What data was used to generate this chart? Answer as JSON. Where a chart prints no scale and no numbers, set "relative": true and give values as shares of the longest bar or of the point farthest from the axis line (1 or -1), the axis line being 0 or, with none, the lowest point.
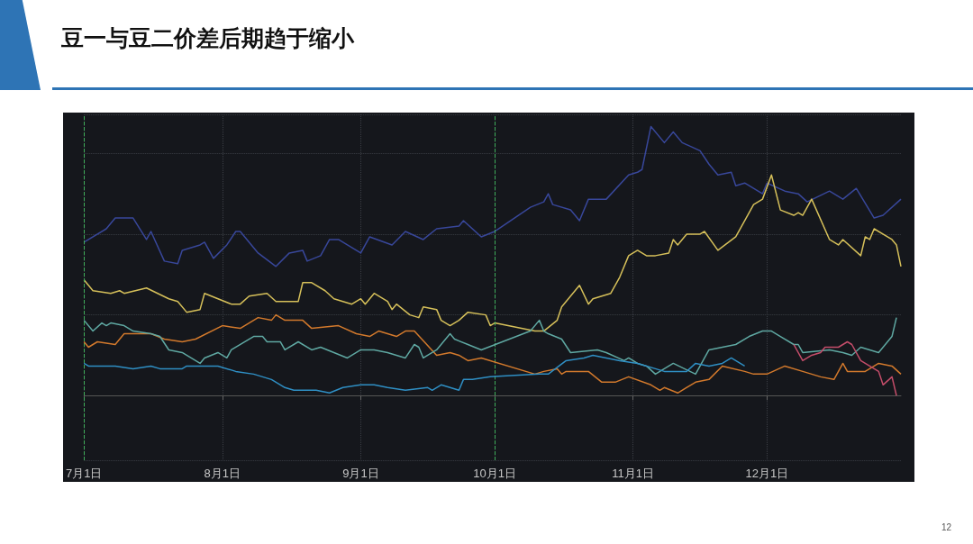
{
  "chart_data": {
    "type": "line",
    "title": "豆一与豆二价差后期趋于缩小",
    "relative": true,
    "grid": true,
    "marker": "none",
    "line_style": "solid",
    "xlim": [
      "--07-01",
      "--12-31"
    ],
    "xticks": [
      {
        "value": "--07-01",
        "label": "7月1日"
      },
      {
        "value": "--08-01",
        "label": "8月1日"
      },
      {
        "value": "--09-01",
        "label": "9月1日"
      },
      {
        "value": "--10-01",
        "label": "10月1日"
      },
      {
        "value": "--11-01",
        "label": "11月1日"
      },
      {
        "value": "--12-01",
        "label": "12月1日"
      }
    ],
    "ref_lines": [
      {
        "axis": "x",
        "value": "--07-01",
        "color": "#3fae5a",
        "line_style": "dashed"
      },
      {
        "axis": "x",
        "value": "--10-01",
        "color": "#3fae5a",
        "line_style": "dashed"
      }
    ],
    "annotations": [
      "12"
    ],
    "series": [
      {
        "color": "#38479a",
        "x": [
          "--07-01",
          "--07-06",
          "--07-08",
          "--07-12",
          "--07-15",
          "--07-16",
          "--07-19",
          "--07-22",
          "--07-23",
          "--07-27",
          "--07-28",
          "--07-30",
          "--08-02",
          "--08-04",
          "--08-05",
          "--08-09",
          "--08-13",
          "--08-16",
          "--08-19",
          "--08-20",
          "--08-23",
          "--08-25",
          "--08-27",
          "--09-01",
          "--09-03",
          "--09-08",
          "--09-11",
          "--09-15",
          "--09-18",
          "--09-23",
          "--09-24",
          "--09-28",
          "--10-01",
          "--10-09",
          "--10-12",
          "--10-13",
          "--10-14",
          "--10-18",
          "--10-20",
          "--10-22",
          "--10-26",
          "--10-31",
          "--11-02",
          "--11-03",
          "--11-05",
          "--11-08",
          "--11-10",
          "--11-12",
          "--11-16",
          "--11-18",
          "--11-20",
          "--11-23",
          "--11-24",
          "--11-26",
          "--11-30",
          "--12-01",
          "--12-05",
          "--12-08",
          "--12-10",
          "--12-15",
          "--12-18",
          "--12-21",
          "--12-25",
          "--12-27",
          "--12-31"
        ],
        "values": [
          0.57,
          0.62,
          0.66,
          0.66,
          0.58,
          0.61,
          0.5,
          0.49,
          0.54,
          0.56,
          0.57,
          0.51,
          0.56,
          0.61,
          0.61,
          0.53,
          0.48,
          0.53,
          0.54,
          0.5,
          0.52,
          0.58,
          0.58,
          0.53,
          0.59,
          0.56,
          0.61,
          0.58,
          0.62,
          0.63,
          0.65,
          0.59,
          0.61,
          0.7,
          0.72,
          0.75,
          0.71,
          0.69,
          0.65,
          0.73,
          0.73,
          0.82,
          0.83,
          0.84,
          1.0,
          0.94,
          0.98,
          0.94,
          0.91,
          0.86,
          0.82,
          0.83,
          0.78,
          0.79,
          0.75,
          0.79,
          0.76,
          0.75,
          0.72,
          0.76,
          0.73,
          0.77,
          0.66,
          0.67,
          0.73
        ]
      },
      {
        "color": "#d6c05a",
        "x": [
          "--07-01",
          "--07-03",
          "--07-07",
          "--07-09",
          "--07-10",
          "--07-15",
          "--07-20",
          "--07-22",
          "--07-24",
          "--07-27",
          "--07-28",
          "--08-03",
          "--08-05",
          "--08-07",
          "--08-11",
          "--08-13",
          "--08-18",
          "--08-19",
          "--08-21",
          "--08-24",
          "--08-26",
          "--08-30",
          "--09-01",
          "--09-02",
          "--09-04",
          "--09-07",
          "--09-08",
          "--09-09",
          "--09-12",
          "--09-14",
          "--09-15",
          "--09-18",
          "--09-19",
          "--09-21",
          "--09-23",
          "--09-25",
          "--09-29",
          "--09-30",
          "--10-01",
          "--10-10",
          "--10-12",
          "--10-15",
          "--10-16",
          "--10-20",
          "--10-22",
          "--10-23",
          "--10-27",
          "--10-29",
          "--10-31",
          "--11-02",
          "--11-04",
          "--11-06",
          "--11-09",
          "--11-10",
          "--11-11",
          "--11-13",
          "--11-16",
          "--11-17",
          "--11-20",
          "--11-24",
          "--11-28",
          "--11-30",
          "--12-02",
          "--12-04",
          "--12-07",
          "--12-08",
          "--12-09",
          "--12-11",
          "--12-15",
          "--12-17",
          "--12-18",
          "--12-22",
          "--12-23",
          "--12-24",
          "--12-25",
          "--12-29",
          "--12-30",
          "--12-31"
        ],
        "values": [
          0.43,
          0.39,
          0.38,
          0.39,
          0.38,
          0.4,
          0.36,
          0.35,
          0.31,
          0.32,
          0.38,
          0.34,
          0.34,
          0.37,
          0.38,
          0.35,
          0.35,
          0.42,
          0.42,
          0.39,
          0.36,
          0.34,
          0.36,
          0.34,
          0.38,
          0.35,
          0.32,
          0.34,
          0.3,
          0.29,
          0.33,
          0.32,
          0.28,
          0.26,
          0.28,
          0.31,
          0.3,
          0.26,
          0.27,
          0.24,
          0.24,
          0.28,
          0.33,
          0.41,
          0.34,
          0.36,
          0.38,
          0.44,
          0.52,
          0.54,
          0.52,
          0.52,
          0.53,
          0.58,
          0.56,
          0.6,
          0.6,
          0.61,
          0.54,
          0.59,
          0.71,
          0.73,
          0.82,
          0.69,
          0.67,
          0.68,
          0.67,
          0.73,
          0.58,
          0.56,
          0.58,
          0.52,
          0.59,
          0.58,
          0.62,
          0.58,
          0.56,
          0.48
        ]
      },
      {
        "color": "#d2792c",
        "x": [
          "--07-01",
          "--07-02",
          "--07-04",
          "--07-08",
          "--07-10",
          "--07-16",
          "--07-19",
          "--07-23",
          "--07-26",
          "--08-01",
          "--08-05",
          "--08-09",
          "--08-12",
          "--08-13",
          "--08-15",
          "--08-19",
          "--08-21",
          "--08-27",
          "--08-31",
          "--09-03",
          "--09-05",
          "--09-07",
          "--09-09",
          "--09-11",
          "--09-13",
          "--09-18",
          "--09-21",
          "--09-23",
          "--09-25",
          "--09-28",
          "--10-10",
          "--10-12",
          "--10-15",
          "--10-16",
          "--10-17",
          "--10-22",
          "--10-25",
          "--10-28",
          "--10-31",
          "--11-05",
          "--11-07",
          "--11-08",
          "--11-11",
          "--11-15",
          "--11-18",
          "--11-21",
          "--11-26",
          "--11-28",
          "--12-01",
          "--12-05",
          "--12-09",
          "--12-13",
          "--12-16",
          "--12-18",
          "--12-19",
          "--12-23",
          "--12-26",
          "--12-29",
          "--12-31"
        ],
        "values": [
          0.2,
          0.18,
          0.2,
          0.19,
          0.23,
          0.23,
          0.21,
          0.2,
          0.21,
          0.26,
          0.25,
          0.29,
          0.28,
          0.3,
          0.28,
          0.28,
          0.25,
          0.26,
          0.23,
          0.22,
          0.24,
          0.23,
          0.22,
          0.24,
          0.24,
          0.15,
          0.16,
          0.15,
          0.13,
          0.14,
          0.08,
          0.09,
          0.1,
          0.08,
          0.09,
          0.09,
          0.05,
          0.05,
          0.07,
          0.04,
          0.02,
          0.03,
          0.01,
          0.05,
          0.06,
          0.11,
          0.09,
          0.08,
          0.08,
          0.11,
          0.09,
          0.07,
          0.06,
          0.12,
          0.09,
          0.09,
          0.12,
          0.11,
          0.08
        ]
      },
      {
        "color": "#5fa8a2",
        "x": [
          "--07-01",
          "--07-03",
          "--07-05",
          "--07-06",
          "--07-07",
          "--07-10",
          "--07-12",
          "--07-16",
          "--07-18",
          "--07-20",
          "--07-23",
          "--07-25",
          "--07-27",
          "--07-28",
          "--07-31",
          "--08-02",
          "--08-03",
          "--08-08",
          "--08-10",
          "--08-11",
          "--08-14",
          "--08-15",
          "--08-18",
          "--08-21",
          "--08-23",
          "--08-26",
          "--08-29",
          "--09-01",
          "--09-04",
          "--09-07",
          "--09-11",
          "--09-13",
          "--09-14",
          "--09-15",
          "--09-18",
          "--09-21",
          "--09-22",
          "--09-25",
          "--09-28",
          "--10-09",
          "--10-11",
          "--10-12",
          "--10-13",
          "--10-16",
          "--10-18",
          "--10-24",
          "--10-26",
          "--10-30",
          "--10-31",
          "--11-02",
          "--11-04",
          "--11-06",
          "--11-10",
          "--11-15",
          "--11-18",
          "--11-21",
          "--11-24",
          "--11-27",
          "--11-30",
          "--12-02",
          "--12-04",
          "--12-07",
          "--12-08",
          "--12-09",
          "--12-15",
          "--12-18",
          "--12-20",
          "--12-22",
          "--12-26",
          "--12-29",
          "--12-30"
        ],
        "values": [
          0.28,
          0.24,
          0.27,
          0.26,
          0.27,
          0.26,
          0.24,
          0.23,
          0.22,
          0.17,
          0.16,
          0.14,
          0.12,
          0.14,
          0.16,
          0.14,
          0.17,
          0.22,
          0.22,
          0.2,
          0.2,
          0.17,
          0.2,
          0.17,
          0.18,
          0.16,
          0.14,
          0.17,
          0.17,
          0.16,
          0.14,
          0.19,
          0.18,
          0.14,
          0.17,
          0.23,
          0.21,
          0.19,
          0.17,
          0.24,
          0.28,
          0.24,
          0.23,
          0.21,
          0.16,
          0.17,
          0.16,
          0.13,
          0.14,
          0.12,
          0.11,
          0.08,
          0.12,
          0.08,
          0.17,
          0.18,
          0.19,
          0.22,
          0.24,
          0.24,
          0.22,
          0.19,
          0.19,
          0.16,
          0.17,
          0.16,
          0.15,
          0.18,
          0.16,
          0.22,
          0.29
        ]
      },
      {
        "color": "#2f8fc4",
        "x": [
          "--07-01",
          "--07-02",
          "--07-08",
          "--07-12",
          "--07-16",
          "--07-18",
          "--07-23",
          "--07-24",
          "--07-31",
          "--08-04",
          "--08-08",
          "--08-12",
          "--08-15",
          "--08-17",
          "--08-22",
          "--08-25",
          "--08-28",
          "--09-01",
          "--09-04",
          "--09-07",
          "--09-11",
          "--09-16",
          "--09-17",
          "--09-19",
          "--09-23",
          "--09-24",
          "--09-26",
          "--09-30",
          "--10-11",
          "--10-13",
          "--10-17",
          "--10-21",
          "--10-23",
          "--10-26",
          "--10-29",
          "--11-02",
          "--11-06",
          "--11-08",
          "--11-13",
          "--11-15",
          "--11-18",
          "--11-21",
          "--11-23",
          "--11-26"
        ],
        "values": [
          0.12,
          0.11,
          0.11,
          0.1,
          0.11,
          0.1,
          0.1,
          0.11,
          0.11,
          0.09,
          0.08,
          0.06,
          0.03,
          0.02,
          0.02,
          0.01,
          0.03,
          0.04,
          0.04,
          0.03,
          0.02,
          0.03,
          0.02,
          0.04,
          0.02,
          0.06,
          0.06,
          0.07,
          0.08,
          0.08,
          0.13,
          0.14,
          0.15,
          0.14,
          0.13,
          0.12,
          0.1,
          0.09,
          0.09,
          0.12,
          0.11,
          0.12,
          0.14,
          0.11
        ]
      },
      {
        "color": "#c44d6a",
        "x": [
          "--12-07",
          "--12-09",
          "--12-11",
          "--12-13",
          "--12-14",
          "--12-17",
          "--12-19",
          "--12-20",
          "--12-22",
          "--12-24",
          "--12-26",
          "--12-27",
          "--12-29",
          "--12-30"
        ],
        "values": [
          0.19,
          0.13,
          0.15,
          0.16,
          0.18,
          0.18,
          0.2,
          0.19,
          0.13,
          0.11,
          0.09,
          0.04,
          0.07,
          0.0
        ]
      }
    ]
  }
}
